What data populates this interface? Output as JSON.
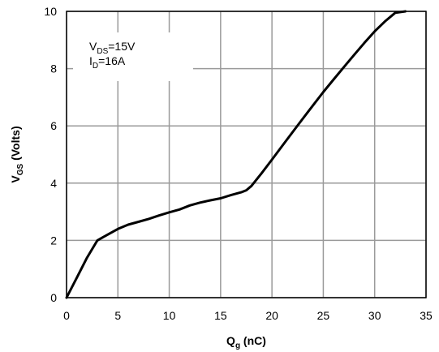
{
  "chart_data": {
    "type": "line",
    "xlim": [
      0,
      35
    ],
    "ylim": [
      0,
      10
    ],
    "x_ticks": [
      "0",
      "5",
      "10",
      "15",
      "20",
      "25",
      "30",
      "35"
    ],
    "y_ticks": [
      "0",
      "2",
      "4",
      "6",
      "8",
      "10"
    ],
    "grid": true,
    "xlabel": {
      "main": "Q",
      "sub": "g",
      "unit": " (nC)"
    },
    "ylabel": {
      "main": "V",
      "sub": "GS",
      "unit": " (Volts)"
    },
    "annotation": [
      {
        "main": "V",
        "sub": "DS",
        "rest": "=15V"
      },
      {
        "main": "I",
        "sub": "D",
        "rest": "=16A"
      }
    ],
    "series": [
      {
        "x": [
          0,
          1,
          2,
          3,
          4,
          5,
          6,
          7,
          8,
          9,
          10,
          11,
          12,
          13,
          14,
          15,
          16,
          17,
          17.5,
          18,
          19,
          20,
          21,
          22,
          23,
          24,
          25,
          26,
          27,
          28,
          29,
          30,
          31,
          32,
          33
        ],
        "y": [
          0,
          0.7,
          1.4,
          2.0,
          2.2,
          2.4,
          2.55,
          2.65,
          2.75,
          2.87,
          2.98,
          3.08,
          3.22,
          3.32,
          3.4,
          3.47,
          3.58,
          3.68,
          3.75,
          3.9,
          4.35,
          4.82,
          5.3,
          5.78,
          6.25,
          6.72,
          7.18,
          7.62,
          8.05,
          8.48,
          8.9,
          9.3,
          9.65,
          9.95,
          10.0
        ]
      }
    ]
  }
}
